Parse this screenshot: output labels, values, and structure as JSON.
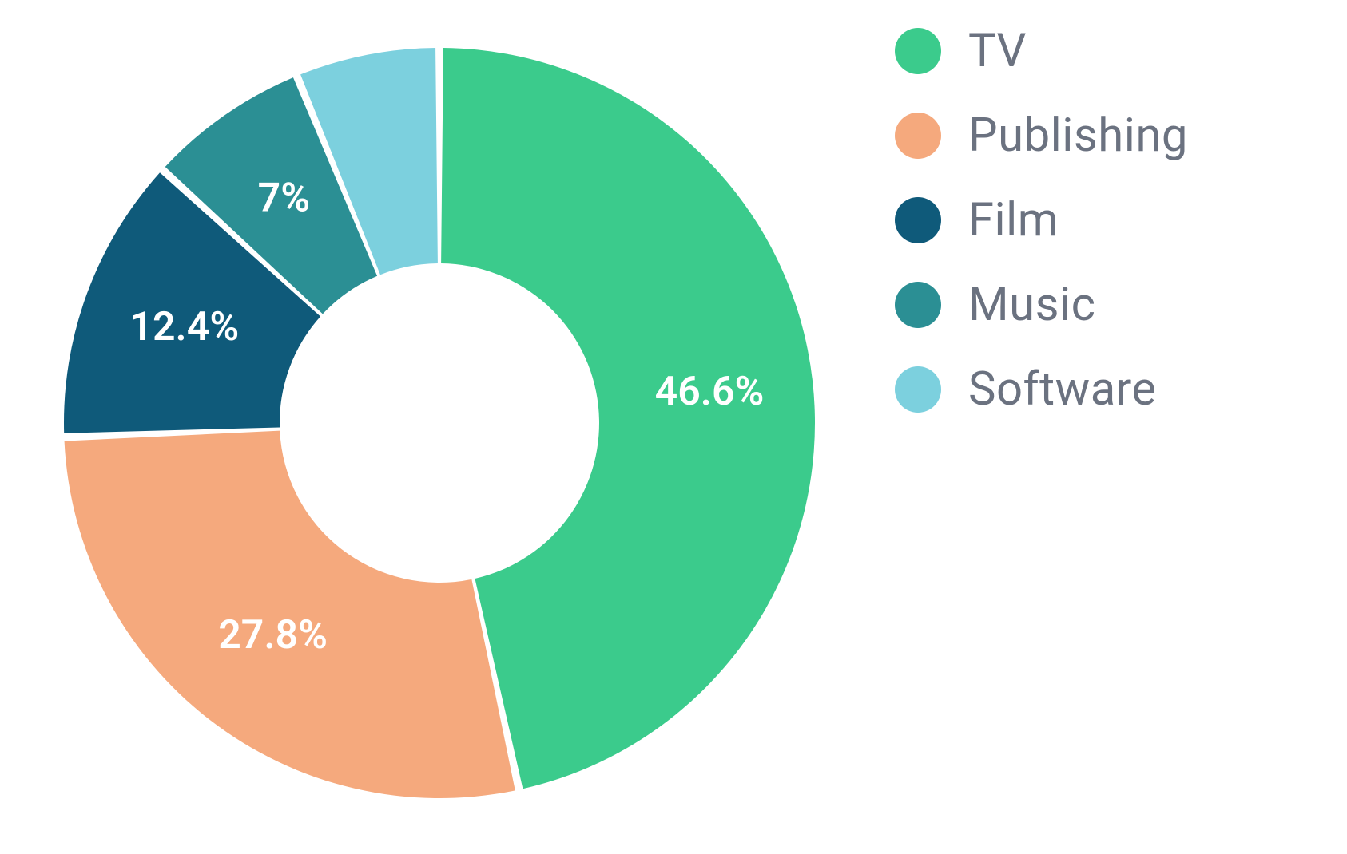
{
  "chart": {
    "type": "donut",
    "background_color": "#ffffff",
    "outer_radius": 470,
    "inner_radius": 200,
    "gap_deg": 1.2,
    "start_angle_deg": -90,
    "label_radius": 340,
    "label_fontsize": 50,
    "label_fontweight": 600,
    "label_color": "#ffffff",
    "slices": [
      {
        "name": "TV",
        "value": 46.6,
        "color": "#3bcb8c",
        "label": "46.6%",
        "show_label": true
      },
      {
        "name": "Publishing",
        "value": 27.8,
        "color": "#f5a97d",
        "label": "27.8%",
        "show_label": true
      },
      {
        "name": "Film",
        "value": 12.4,
        "color": "#0f5a7a",
        "label": "12.4%",
        "show_label": true
      },
      {
        "name": "Music",
        "value": 7.0,
        "color": "#2b8f94",
        "label": "7%",
        "show_label": true
      },
      {
        "name": "Software",
        "value": 6.2,
        "color": "#7cd0de",
        "label": "",
        "show_label": false
      }
    ]
  },
  "legend": {
    "label_color": "#6b7280",
    "label_fontsize": 58,
    "swatch_size": 58,
    "items": [
      {
        "label": "TV",
        "color": "#3bcb8c"
      },
      {
        "label": "Publishing",
        "color": "#f5a97d"
      },
      {
        "label": "Film",
        "color": "#0f5a7a"
      },
      {
        "label": "Music",
        "color": "#2b8f94"
      },
      {
        "label": "Software",
        "color": "#7cd0de"
      }
    ]
  }
}
